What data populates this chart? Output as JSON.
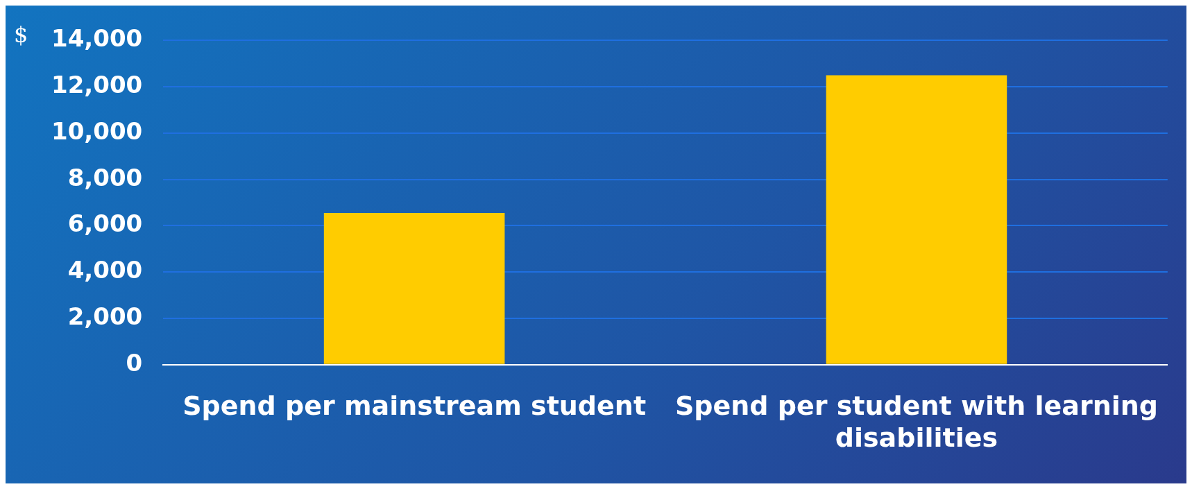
{
  "chart_data": {
    "type": "bar",
    "ylabel": "$",
    "categories": [
      "Spend per mainstream student",
      "Spend per student with learning disabilities"
    ],
    "values": [
      6550,
      12500
    ],
    "color": "#ffcc00",
    "ylim": [
      0,
      14000
    ],
    "yticks": [
      0,
      {
        "value": 2000,
        "label": "2,000"
      },
      {
        "value": 4000,
        "label": "4,000"
      },
      {
        "value": 6000,
        "label": "6,000"
      },
      {
        "value": 8000,
        "label": "8,000"
      },
      {
        "value": 10000,
        "label": "10,000"
      },
      {
        "value": 12000,
        "label": "12,000"
      },
      {
        "value": 14000,
        "label": "14,000"
      }
    ],
    "grid": "y",
    "legend": false
  }
}
